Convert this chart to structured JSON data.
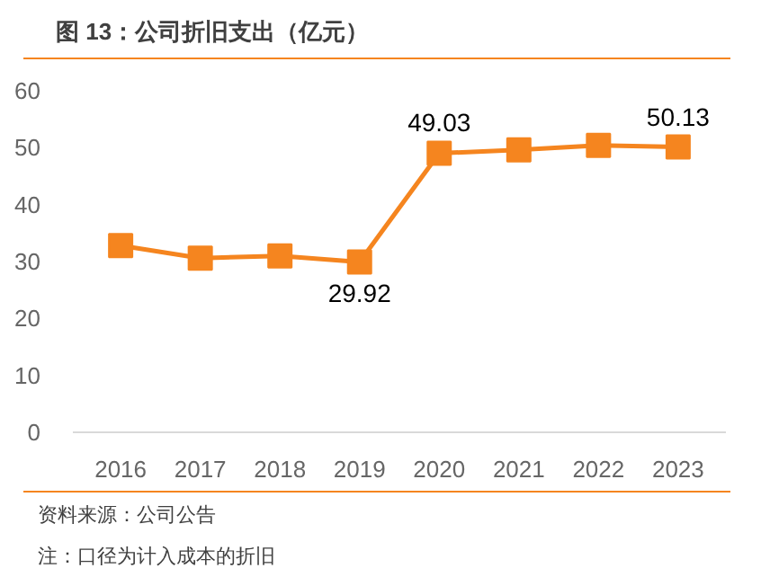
{
  "chart_data": {
    "type": "line",
    "title": "图 13：公司折旧支出（亿元）",
    "categories": [
      "2016",
      "2017",
      "2018",
      "2019",
      "2020",
      "2021",
      "2022",
      "2023"
    ],
    "series": [
      {
        "color": "#f5851f",
        "values": [
          32.8,
          30.6,
          31.0,
          29.92,
          49.03,
          49.6,
          50.4,
          50.13
        ],
        "value_labels": [
          null,
          null,
          null,
          "29.92",
          "49.03",
          null,
          null,
          "50.13"
        ]
      }
    ],
    "ylim": [
      0,
      60
    ],
    "yticks": [
      0,
      10,
      20,
      30,
      40,
      50,
      60
    ],
    "grid": false,
    "marker": "square",
    "line_style": "solid",
    "annotations": [
      "资料来源：公司公告",
      "注：口径为计入成本的折旧"
    ]
  }
}
